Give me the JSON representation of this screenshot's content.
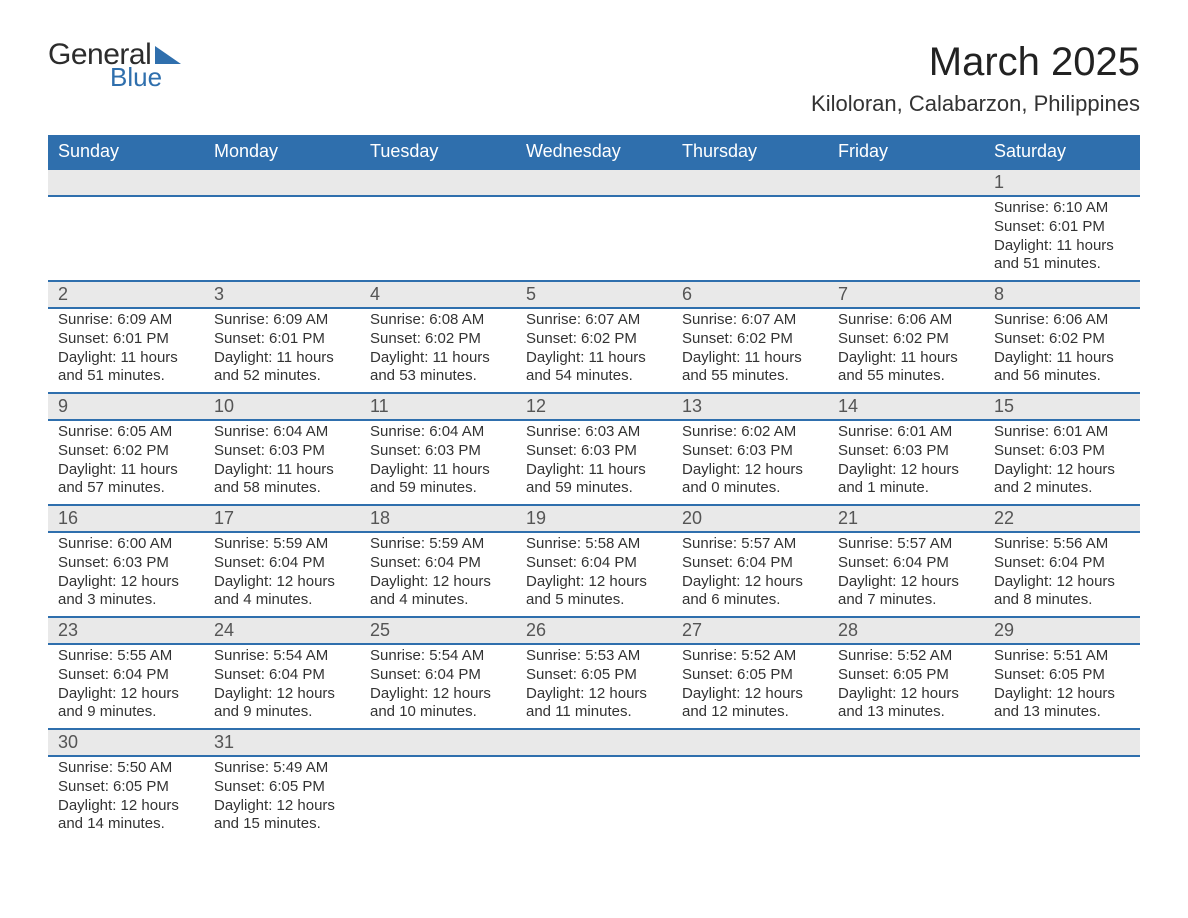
{
  "logo": {
    "line1": "General",
    "line2": "Blue"
  },
  "header": {
    "month_title": "March 2025",
    "location": "Kiloloran, Calabarzon, Philippines"
  },
  "colors": {
    "header_bg": "#2f6fad",
    "header_text": "#ffffff",
    "daynum_bg": "#e9e9e9",
    "row_divider": "#2f6fad",
    "text": "#333333",
    "background": "#ffffff"
  },
  "typography": {
    "title_fontsize": 40,
    "location_fontsize": 22,
    "weekday_fontsize": 18,
    "daynum_fontsize": 18,
    "body_fontsize": 15
  },
  "weekdays": [
    "Sunday",
    "Monday",
    "Tuesday",
    "Wednesday",
    "Thursday",
    "Friday",
    "Saturday"
  ],
  "weeks": [
    [
      null,
      null,
      null,
      null,
      null,
      null,
      {
        "day": 1,
        "sunrise": "6:10 AM",
        "sunset": "6:01 PM",
        "daylight": "11 hours and 51 minutes."
      }
    ],
    [
      {
        "day": 2,
        "sunrise": "6:09 AM",
        "sunset": "6:01 PM",
        "daylight": "11 hours and 51 minutes."
      },
      {
        "day": 3,
        "sunrise": "6:09 AM",
        "sunset": "6:01 PM",
        "daylight": "11 hours and 52 minutes."
      },
      {
        "day": 4,
        "sunrise": "6:08 AM",
        "sunset": "6:02 PM",
        "daylight": "11 hours and 53 minutes."
      },
      {
        "day": 5,
        "sunrise": "6:07 AM",
        "sunset": "6:02 PM",
        "daylight": "11 hours and 54 minutes."
      },
      {
        "day": 6,
        "sunrise": "6:07 AM",
        "sunset": "6:02 PM",
        "daylight": "11 hours and 55 minutes."
      },
      {
        "day": 7,
        "sunrise": "6:06 AM",
        "sunset": "6:02 PM",
        "daylight": "11 hours and 55 minutes."
      },
      {
        "day": 8,
        "sunrise": "6:06 AM",
        "sunset": "6:02 PM",
        "daylight": "11 hours and 56 minutes."
      }
    ],
    [
      {
        "day": 9,
        "sunrise": "6:05 AM",
        "sunset": "6:02 PM",
        "daylight": "11 hours and 57 minutes."
      },
      {
        "day": 10,
        "sunrise": "6:04 AM",
        "sunset": "6:03 PM",
        "daylight": "11 hours and 58 minutes."
      },
      {
        "day": 11,
        "sunrise": "6:04 AM",
        "sunset": "6:03 PM",
        "daylight": "11 hours and 59 minutes."
      },
      {
        "day": 12,
        "sunrise": "6:03 AM",
        "sunset": "6:03 PM",
        "daylight": "11 hours and 59 minutes."
      },
      {
        "day": 13,
        "sunrise": "6:02 AM",
        "sunset": "6:03 PM",
        "daylight": "12 hours and 0 minutes."
      },
      {
        "day": 14,
        "sunrise": "6:01 AM",
        "sunset": "6:03 PM",
        "daylight": "12 hours and 1 minute."
      },
      {
        "day": 15,
        "sunrise": "6:01 AM",
        "sunset": "6:03 PM",
        "daylight": "12 hours and 2 minutes."
      }
    ],
    [
      {
        "day": 16,
        "sunrise": "6:00 AM",
        "sunset": "6:03 PM",
        "daylight": "12 hours and 3 minutes."
      },
      {
        "day": 17,
        "sunrise": "5:59 AM",
        "sunset": "6:04 PM",
        "daylight": "12 hours and 4 minutes."
      },
      {
        "day": 18,
        "sunrise": "5:59 AM",
        "sunset": "6:04 PM",
        "daylight": "12 hours and 4 minutes."
      },
      {
        "day": 19,
        "sunrise": "5:58 AM",
        "sunset": "6:04 PM",
        "daylight": "12 hours and 5 minutes."
      },
      {
        "day": 20,
        "sunrise": "5:57 AM",
        "sunset": "6:04 PM",
        "daylight": "12 hours and 6 minutes."
      },
      {
        "day": 21,
        "sunrise": "5:57 AM",
        "sunset": "6:04 PM",
        "daylight": "12 hours and 7 minutes."
      },
      {
        "day": 22,
        "sunrise": "5:56 AM",
        "sunset": "6:04 PM",
        "daylight": "12 hours and 8 minutes."
      }
    ],
    [
      {
        "day": 23,
        "sunrise": "5:55 AM",
        "sunset": "6:04 PM",
        "daylight": "12 hours and 9 minutes."
      },
      {
        "day": 24,
        "sunrise": "5:54 AM",
        "sunset": "6:04 PM",
        "daylight": "12 hours and 9 minutes."
      },
      {
        "day": 25,
        "sunrise": "5:54 AM",
        "sunset": "6:04 PM",
        "daylight": "12 hours and 10 minutes."
      },
      {
        "day": 26,
        "sunrise": "5:53 AM",
        "sunset": "6:05 PM",
        "daylight": "12 hours and 11 minutes."
      },
      {
        "day": 27,
        "sunrise": "5:52 AM",
        "sunset": "6:05 PM",
        "daylight": "12 hours and 12 minutes."
      },
      {
        "day": 28,
        "sunrise": "5:52 AM",
        "sunset": "6:05 PM",
        "daylight": "12 hours and 13 minutes."
      },
      {
        "day": 29,
        "sunrise": "5:51 AM",
        "sunset": "6:05 PM",
        "daylight": "12 hours and 13 minutes."
      }
    ],
    [
      {
        "day": 30,
        "sunrise": "5:50 AM",
        "sunset": "6:05 PM",
        "daylight": "12 hours and 14 minutes."
      },
      {
        "day": 31,
        "sunrise": "5:49 AM",
        "sunset": "6:05 PM",
        "daylight": "12 hours and 15 minutes."
      },
      null,
      null,
      null,
      null,
      null
    ]
  ],
  "labels": {
    "sunrise_prefix": "Sunrise: ",
    "sunset_prefix": "Sunset: ",
    "daylight_prefix": "Daylight: "
  }
}
